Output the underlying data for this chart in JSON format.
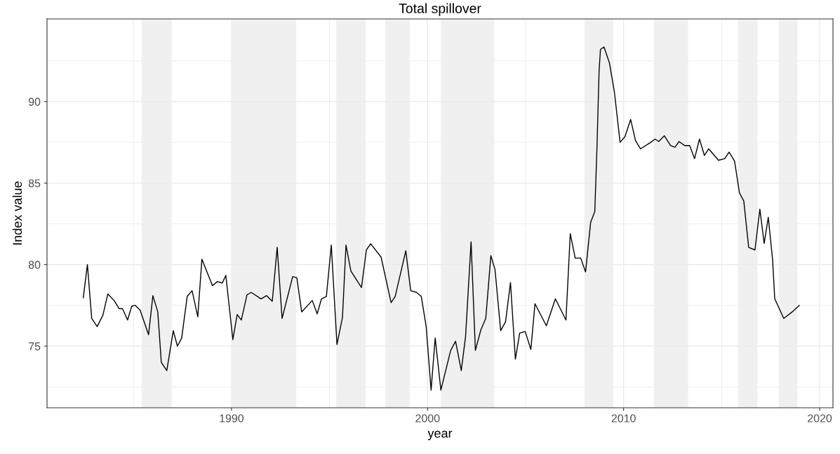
{
  "chart_data": {
    "type": "line",
    "title": "Total spillover",
    "xlabel": "year",
    "ylabel": "Index value",
    "xlim": [
      1980.59,
      2020.68
    ],
    "ylim": [
      71.22,
      95.07
    ],
    "xticks": [
      1990,
      2000,
      2010,
      2020
    ],
    "yticks": [
      75,
      80,
      85,
      90
    ],
    "grid": true,
    "line_style": "solid",
    "x": [
      1982.44,
      1982.65,
      1982.87,
      1983.15,
      1983.44,
      1983.69,
      1984.01,
      1984.27,
      1984.44,
      1984.7,
      1984.91,
      1985.09,
      1985.34,
      1985.77,
      1985.99,
      1986.24,
      1986.42,
      1986.7,
      1987.03,
      1987.24,
      1987.46,
      1987.74,
      1987.99,
      1988.28,
      1988.49,
      1989.03,
      1989.28,
      1989.53,
      1989.71,
      1990.07,
      1990.29,
      1990.5,
      1990.79,
      1991.0,
      1991.51,
      1991.79,
      1992.08,
      1992.33,
      1992.58,
      1993.12,
      1993.33,
      1993.58,
      1994.12,
      1994.37,
      1994.59,
      1994.84,
      1995.09,
      1995.38,
      1995.66,
      1995.84,
      1996.09,
      1996.63,
      1996.88,
      1997.1,
      1997.63,
      1998.14,
      1998.35,
      1998.89,
      1999.14,
      1999.43,
      1999.68,
      1999.93,
      2000.18,
      2000.39,
      2000.68,
      2001.18,
      2001.43,
      2001.72,
      2001.94,
      2002.22,
      2002.44,
      2002.72,
      2002.97,
      2003.23,
      2003.44,
      2003.73,
      2003.98,
      2004.23,
      2004.48,
      2004.7,
      2004.98,
      2005.27,
      2005.48,
      2006.06,
      2006.52,
      2007.06,
      2007.28,
      2007.53,
      2007.81,
      2008.06,
      2008.32,
      2008.53,
      2008.64,
      2008.75,
      2008.82,
      2009.0,
      2009.28,
      2009.53,
      2009.82,
      2010.07,
      2010.36,
      2010.61,
      2010.86,
      2011.33,
      2011.61,
      2011.79,
      2012.08,
      2012.4,
      2012.62,
      2012.83,
      2013.12,
      2013.37,
      2013.62,
      2013.87,
      2014.12,
      2014.34,
      2014.84,
      2015.16,
      2015.38,
      2015.66,
      2015.91,
      2016.13,
      2016.38,
      2016.7,
      2016.95,
      2017.17,
      2017.38,
      2017.6,
      2017.71,
      2018.17,
      2018.6,
      2018.96
    ],
    "series": [
      {
        "color": "#000000",
        "values": [
          77.97,
          80.0,
          76.7,
          76.2,
          76.9,
          78.2,
          77.8,
          77.3,
          77.3,
          76.6,
          77.45,
          77.5,
          77.2,
          75.7,
          78.1,
          77.1,
          74.0,
          73.5,
          75.95,
          75.0,
          75.5,
          78.05,
          78.4,
          76.8,
          80.33,
          78.71,
          78.96,
          78.87,
          79.34,
          75.4,
          76.94,
          76.6,
          78.14,
          78.3,
          77.9,
          78.1,
          77.75,
          81.06,
          76.7,
          79.26,
          79.2,
          77.1,
          77.8,
          76.98,
          77.9,
          78.05,
          81.2,
          75.1,
          76.76,
          81.2,
          79.6,
          78.6,
          80.9,
          81.28,
          80.46,
          77.67,
          78.05,
          80.85,
          78.4,
          78.3,
          78.05,
          76.2,
          72.3,
          75.5,
          72.3,
          74.74,
          75.3,
          73.5,
          75.6,
          81.4,
          74.74,
          76.0,
          76.7,
          80.55,
          79.7,
          75.95,
          76.5,
          78.9,
          74.2,
          75.8,
          75.9,
          74.8,
          77.6,
          76.25,
          77.9,
          76.6,
          81.9,
          80.4,
          80.4,
          79.55,
          82.6,
          83.25,
          87.1,
          91.9,
          93.2,
          93.35,
          92.36,
          90.6,
          87.5,
          87.85,
          88.9,
          87.6,
          87.1,
          87.46,
          87.7,
          87.55,
          87.9,
          87.3,
          87.2,
          87.55,
          87.3,
          87.3,
          86.5,
          87.7,
          86.7,
          87.1,
          86.4,
          86.5,
          86.9,
          86.35,
          84.4,
          83.9,
          81.06,
          80.9,
          83.4,
          81.3,
          82.9,
          80.3,
          77.9,
          76.7,
          77.1,
          77.5
        ]
      }
    ],
    "bands": [
      {
        "axis": "x",
        "from": 1985.41,
        "to": 1986.95,
        "color": "#f0f0f0"
      },
      {
        "axis": "x",
        "from": 1990.04,
        "to": 1993.3,
        "color": "#f0f0f0"
      },
      {
        "axis": "x",
        "from": 1995.34,
        "to": 1996.84,
        "color": "#f0f0f0"
      },
      {
        "axis": "x",
        "from": 1997.84,
        "to": 1999.09,
        "color": "#f0f0f0"
      },
      {
        "axis": "x",
        "from": 2000.68,
        "to": 2003.4,
        "color": "#f0f0f0"
      },
      {
        "axis": "x",
        "from": 2008.0,
        "to": 2009.47,
        "color": "#f0f0f0"
      },
      {
        "axis": "x",
        "from": 2011.54,
        "to": 2013.29,
        "color": "#f0f0f0"
      },
      {
        "axis": "x",
        "from": 2015.83,
        "to": 2016.83,
        "color": "#f0f0f0"
      },
      {
        "axis": "x",
        "from": 2017.91,
        "to": 2018.87,
        "color": "#f0f0f0"
      }
    ]
  }
}
